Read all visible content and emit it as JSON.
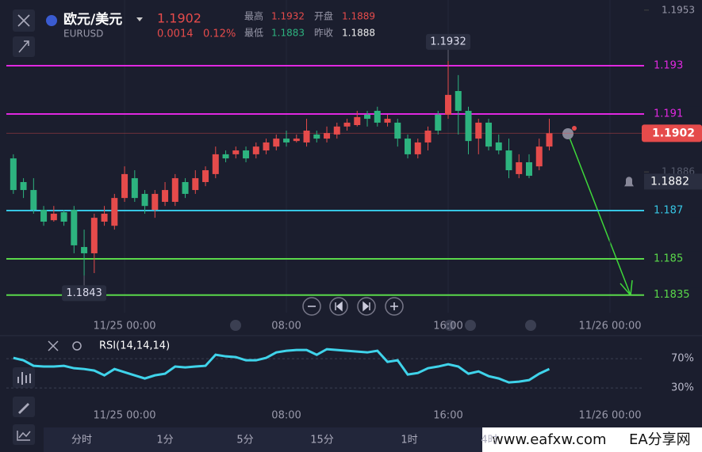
{
  "header": {
    "name": "欧元/美元",
    "symbol": "EURUSD",
    "price": 1.1902,
    "change": 0.0014,
    "change_pct": "0.12%",
    "stats": [
      {
        "label": "最高",
        "value": 1.1932
      },
      {
        "label": "开盘",
        "value": 1.1889
      },
      {
        "label": "最低",
        "value": 1.1883
      },
      {
        "label": "昨收",
        "value": 1.1888
      }
    ]
  },
  "chart_data": [
    {
      "type": "candlestick",
      "x": [
        -5.5,
        -5,
        -4.5,
        -4,
        -3.5,
        -3,
        -2.5,
        -2,
        -1.5,
        -1,
        -0.5,
        0,
        0.5,
        1,
        1.5,
        2,
        2.5,
        3,
        3.5,
        4,
        4.5,
        5,
        5.5,
        6,
        6.5,
        7,
        7.5,
        8,
        8.5,
        9,
        9.5,
        10,
        10.5,
        11,
        11.5,
        12,
        12.5,
        13,
        13.5,
        14,
        14.5,
        15,
        15.5,
        16,
        16.5,
        17,
        17.5,
        18,
        18.5,
        19,
        19.5,
        20,
        20.5,
        21
      ],
      "open": [
        1.18916,
        1.18818,
        1.18785,
        1.18703,
        1.1866,
        1.18693,
        1.18703,
        1.18549,
        1.18523,
        1.18654,
        1.18637,
        1.18752,
        1.18834,
        1.18769,
        1.18703,
        1.18736,
        1.18736,
        1.18818,
        1.18785,
        1.18818,
        1.18851,
        1.18933,
        1.18933,
        1.18949,
        1.18933,
        1.18949,
        1.18965,
        1.18998,
        1.18988,
        1.18982,
        1.19015,
        1.18998,
        1.19015,
        1.19048,
        1.19054,
        1.19097,
        1.19113,
        1.19064,
        1.19064,
        1.18998,
        1.18933,
        1.18982,
        1.19097,
        1.19097,
        1.19195,
        1.19113,
        1.18998,
        1.19064,
        1.18982,
        1.18949,
        1.18851,
        1.189,
        1.18883,
        1.18965
      ],
      "high": [
        1.18933,
        1.18834,
        1.18834,
        1.18719,
        1.18719,
        1.18703,
        1.18719,
        1.18621,
        1.18687,
        1.18719,
        1.18769,
        1.18883,
        1.18867,
        1.18785,
        1.18785,
        1.18818,
        1.18851,
        1.18834,
        1.18867,
        1.18883,
        1.18965,
        1.18949,
        1.18965,
        1.18965,
        1.18982,
        1.18998,
        1.19015,
        1.19031,
        1.19015,
        1.1908,
        1.19031,
        1.19048,
        1.19064,
        1.1908,
        1.19113,
        1.19113,
        1.1913,
        1.19097,
        1.1908,
        1.19015,
        1.18998,
        1.19048,
        1.19113,
        1.1932,
        1.19261,
        1.1913,
        1.1908,
        1.1908,
        1.19015,
        1.18998,
        1.18933,
        1.18933,
        1.18998,
        1.1908
      ],
      "low": [
        1.18769,
        1.18752,
        1.18687,
        1.18637,
        1.18654,
        1.18637,
        1.18523,
        1.1843,
        1.18441,
        1.18637,
        1.18621,
        1.18736,
        1.18736,
        1.18687,
        1.1867,
        1.18719,
        1.18719,
        1.18752,
        1.18769,
        1.18801,
        1.18834,
        1.189,
        1.18916,
        1.189,
        1.18916,
        1.18933,
        1.18949,
        1.18965,
        1.18982,
        1.18965,
        1.18982,
        1.18982,
        1.18998,
        1.19031,
        1.19048,
        1.19048,
        1.19048,
        1.19048,
        1.18965,
        1.18916,
        1.18916,
        1.18949,
        1.19015,
        1.1908,
        1.19015,
        1.18933,
        1.18933,
        1.18949,
        1.18933,
        1.18834,
        1.18834,
        1.18834,
        1.18867,
        1.18949
      ],
      "close": [
        1.18785,
        1.18785,
        1.18703,
        1.18654,
        1.18687,
        1.18654,
        1.18556,
        1.18523,
        1.1867,
        1.18687,
        1.18752,
        1.18851,
        1.18752,
        1.18719,
        1.18769,
        1.18785,
        1.18834,
        1.18769,
        1.18834,
        1.18867,
        1.18933,
        1.18916,
        1.18949,
        1.18916,
        1.18965,
        1.18982,
        1.18998,
        1.18982,
        1.18998,
        1.19031,
        1.18998,
        1.19021,
        1.19048,
        1.19064,
        1.19087,
        1.1908,
        1.19064,
        1.1908,
        1.18998,
        1.18933,
        1.18982,
        1.19031,
        1.19031,
        1.19179,
        1.19113,
        1.18988,
        1.19064,
        1.18965,
        1.18949,
        1.18867,
        1.189,
        1.18844,
        1.18965,
        1.1902
      ],
      "up_color": "#e54b4b",
      "down_color": "#2db37f",
      "xlim": [
        -6.16,
        28.55
      ],
      "ylim": [
        1.18277,
        1.19572
      ],
      "xticks": [
        {
          "value": 0,
          "label": "11/25 00:00"
        },
        {
          "value": 8,
          "label": "08:00"
        },
        {
          "value": 16,
          "label": "16:00"
        },
        {
          "value": 24,
          "label": "11/26 00:00"
        }
      ],
      "yticks": [
        1.1953,
        1.1886
      ],
      "levels": [
        {
          "value": 1.193,
          "color": "#e028e0"
        },
        {
          "value": 1.191,
          "color": "#e028e0"
        },
        {
          "value": 1.187,
          "color": "#36c6e4"
        },
        {
          "value": 1.185,
          "color": "#5ad84a"
        },
        {
          "value": 1.1835,
          "color": "#5ad84a"
        }
      ],
      "last_price": {
        "value": 1.1902,
        "color": "#e54b4b"
      },
      "alert": {
        "value": 1.1882
      },
      "annotations": [
        {
          "x": 16,
          "value": 1.1932
        },
        {
          "x": -2,
          "value": 1.1843
        }
      ]
    },
    {
      "type": "line",
      "name": "RSI(14,14,14)",
      "color": "#3fd3ea",
      "x": [
        -5.5,
        -5,
        -4.5,
        -4,
        -3.5,
        -3,
        -2.5,
        -2,
        -1.5,
        -1,
        -0.5,
        0,
        0.5,
        1,
        1.5,
        2,
        2.5,
        3,
        3.5,
        4,
        4.5,
        5,
        5.5,
        6,
        6.5,
        7,
        7.5,
        8,
        8.5,
        9,
        9.5,
        10,
        10.5,
        11,
        11.5,
        12,
        12.5,
        13,
        13.5,
        14,
        14.5,
        15,
        15.5,
        16,
        16.5,
        17,
        17.5,
        18,
        18.5,
        19,
        19.5,
        20,
        20.5,
        21
      ],
      "values": [
        71.1,
        67.8,
        60.3,
        59.3,
        59.3,
        60.3,
        57.0,
        55.9,
        53.8,
        47.3,
        55.9,
        51.6,
        47.3,
        43.0,
        47.3,
        49.5,
        59.3,
        58.1,
        59.3,
        60.3,
        75.4,
        73.2,
        72.2,
        67.8,
        67.8,
        71.1,
        78.6,
        80.8,
        81.9,
        81.9,
        75.4,
        83.0,
        81.9,
        80.8,
        79.7,
        78.6,
        80.8,
        65.7,
        67.8,
        48.4,
        50.5,
        57.0,
        59.3,
        62.4,
        59.3,
        49.5,
        52.7,
        46.2,
        43.0,
        37.6,
        38.7,
        40.8,
        49.5,
        56.0
      ],
      "xlim": [
        -6.16,
        28.55
      ],
      "ylim": [
        20,
        95
      ],
      "xticks": [
        {
          "value": 0,
          "label": "11/25 00:00"
        },
        {
          "value": 8,
          "label": "08:00"
        },
        {
          "value": 16,
          "label": "16:00"
        },
        {
          "value": 24,
          "label": "11/26 00:00"
        }
      ],
      "yticks": [
        {
          "value": 70,
          "label": "70%"
        },
        {
          "value": 30,
          "label": "30%"
        }
      ]
    }
  ],
  "toolbar": [
    "分时",
    "1分",
    "5分",
    "15分",
    "1时",
    "4时"
  ],
  "watermark": {
    "url": "www.eafxw.com",
    "name": "EA分享网"
  }
}
